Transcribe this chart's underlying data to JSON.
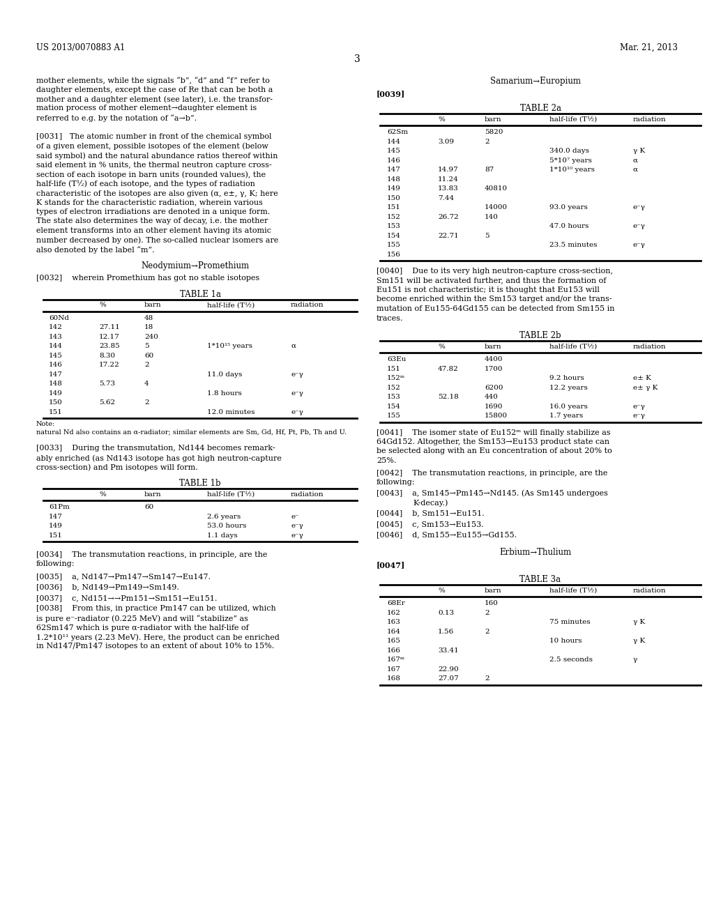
{
  "page_header_left": "US 2013/0070883 A1",
  "page_header_right": "Mar. 21, 2013",
  "page_number": "3",
  "background_color": "#ffffff",
  "left_col_texts": [
    "mother elements, while the signals “b”, “d” and “f” refer to",
    "daughter elements, except the case of Re that can be both a",
    "mother and a daughter element (see later), i.e. the transfor-",
    "mation process of mother element→daughter element is",
    "referred to e.g. by the notation of “a→b”.",
    "",
    "[0031]   The atomic number in front of the chemical symbol",
    "of a given element, possible isotopes of the element (below",
    "said symbol) and the natural abundance ratios thereof within",
    "said element in % units, the thermal neutron capture cross-",
    "section of each isotope in barn units (rounded values), the",
    "half-life (T½) of each isotope, and the types of radiation",
    "characteristic of the isotopes are also given (α, e±, γ, K; here",
    "K stands for the characteristic radiation, wherein various",
    "types of electron irradiations are denoted in a unique form.",
    "The state also determines the way of decay, i.e. the mother",
    "element transforms into an other element having its atomic",
    "number decreased by one). The so-called nuclear isomers are",
    "also denoted by the label “m”."
  ],
  "neodymium_header": "Neodymium→Promethium",
  "para0032": "[0032]    wherein Promethium has got no stable isotopes",
  "table1a_title": "TABLE 1a",
  "table1a_cols": [
    "%",
    "barn",
    "half-life (T½)",
    "radiation"
  ],
  "table1a_rows": [
    [
      "60Nd",
      "",
      "48",
      "",
      ""
    ],
    [
      "142",
      "27.11",
      "18",
      "",
      ""
    ],
    [
      "143",
      "12.17",
      "240",
      "",
      ""
    ],
    [
      "144",
      "23.85",
      "5",
      "1*10¹⁵ years",
      "α"
    ],
    [
      "145",
      "8.30",
      "60",
      "",
      ""
    ],
    [
      "146",
      "17.22",
      "2",
      "",
      ""
    ],
    [
      "147",
      "",
      "",
      "11.0 days",
      "e⁻γ"
    ],
    [
      "148",
      "5.73",
      "4",
      "",
      ""
    ],
    [
      "149",
      "",
      "",
      "1.8 hours",
      "e⁻γ"
    ],
    [
      "150",
      "5.62",
      "2",
      "",
      ""
    ],
    [
      "151",
      "",
      "",
      "12.0 minutes",
      "e⁻γ"
    ]
  ],
  "table1a_note": "Note:",
  "table1a_note2": "natural Nd also contains an α-radiator; similar elements are Sm, Gd, Hf, Pt, Pb, Th and U.",
  "para0033_lines": [
    "[0033]    During the transmutation, Nd144 becomes remark-",
    "ably enriched (as Nd143 isotope has got high neutron-capture",
    "cross-section) and Pm isotopes will form."
  ],
  "table1b_title": "TABLE 1b",
  "table1b_cols": [
    "%",
    "barn",
    "half-life (T½)",
    "radiation"
  ],
  "table1b_rows": [
    [
      "61Pm",
      "",
      "60",
      "",
      ""
    ],
    [
      "147",
      "",
      "",
      "2.6 years",
      "e⁻"
    ],
    [
      "149",
      "",
      "",
      "53.0 hours",
      "e⁻γ"
    ],
    [
      "151",
      "",
      "",
      "1.1 days",
      "e⁻γ"
    ]
  ],
  "para0034_lines": [
    "[0034]    The transmutation reactions, in principle, are the",
    "following:"
  ],
  "para0035": "[0035]    a, Nd147→Pm147→Sm147→Eu147.",
  "para0036": "[0036]    b, Nd149→Pm149→Sm149.",
  "para0037": "[0037]    c, Nd151→→Pm151→Sm151→Eu151.",
  "para0038_lines": [
    "[0038]    From this, in practice Pm147 can be utilized, which",
    "is pure e⁻-radiator (0.225 MeV) and will “stabilize” as",
    "62Sm147 which is pure α-radiator with the half-life of",
    "1.2*10¹¹ years (2.23 MeV). Here, the product can be enriched",
    "in Nd147/Pm147 isotopes to an extent of about 10% to 15%."
  ],
  "samarium_header": "Samarium→Europium",
  "para0039": "[0039]",
  "table2a_title": "TABLE 2a",
  "table2a_cols": [
    "%",
    "barn",
    "half-life (T½)",
    "radiation"
  ],
  "table2a_rows": [
    [
      "62Sm",
      "",
      "5820",
      "",
      ""
    ],
    [
      "144",
      "3.09",
      "2",
      "",
      ""
    ],
    [
      "145",
      "",
      "",
      "340.0 days",
      "γ K"
    ],
    [
      "146",
      "",
      "",
      "5*10⁷ years",
      "α"
    ],
    [
      "147",
      "14.97",
      "87",
      "1*10¹⁰ years",
      "α"
    ],
    [
      "148",
      "11.24",
      "",
      "",
      ""
    ],
    [
      "149",
      "13.83",
      "40810",
      "",
      ""
    ],
    [
      "150",
      "7.44",
      "",
      "",
      ""
    ],
    [
      "151",
      "",
      "14000",
      "93.0 years",
      "e⁻γ"
    ],
    [
      "152",
      "26.72",
      "140",
      "",
      ""
    ],
    [
      "153",
      "",
      "",
      "47.0 hours",
      "e⁻γ"
    ],
    [
      "154",
      "22.71",
      "5",
      "",
      ""
    ],
    [
      "155",
      "",
      "",
      "23.5 minutes",
      "e⁻γ"
    ],
    [
      "156",
      "",
      "",
      "",
      ""
    ]
  ],
  "para0040_lines": [
    "[0040]    Due to its very high neutron-capture cross-section,",
    "Sm151 will be activated further, and thus the formation of",
    "Eu151 is not characteristic; it is thought that Eu153 will",
    "become enriched within the Sm153 target and/or the trans-",
    "mutation of Eu155-64Gd155 can be detected from Sm155 in",
    "traces."
  ],
  "table2b_title": "TABLE 2b",
  "table2b_cols": [
    "%",
    "barn",
    "half-life (T½)",
    "radiation"
  ],
  "table2b_rows": [
    [
      "63Eu",
      "",
      "4400",
      "",
      ""
    ],
    [
      "151",
      "47.82",
      "1700",
      "",
      ""
    ],
    [
      "152ᵐ",
      "",
      "",
      "9.2 hours",
      "e± K"
    ],
    [
      "152",
      "",
      "6200",
      "12.2 years",
      "e± γ K"
    ],
    [
      "153",
      "52.18",
      "440",
      "",
      ""
    ],
    [
      "154",
      "",
      "1690",
      "16.0 years",
      "e⁻γ"
    ],
    [
      "155",
      "",
      "15800",
      "1.7 years",
      "e⁻γ"
    ]
  ],
  "para0041_lines": [
    "[0041]    The isomer state of Eu152ᵐ will finally stabilize as",
    "64Gd152. Altogether, the Sm153→Eu153 product state can",
    "be selected along with an Eu concentration of about 20% to",
    "25%."
  ],
  "para0042_lines": [
    "[0042]    The transmutation reactions, in principle, are the",
    "following:"
  ],
  "para0043": "[0043]    a, Sm145→Pm145→Nd145. (As Sm145 undergoes",
  "para0043b": "K-decay.)",
  "para0044": "[0044]    b, Sm151→Eu151.",
  "para0045": "[0045]    c, Sm153→Eu153.",
  "para0046": "[0046]    d, Sm155→Eu155→Gd155.",
  "erbium_header": "Erbium→Thulium",
  "para0047": "[0047]",
  "table3a_title": "TABLE 3a",
  "table3a_cols": [
    "%",
    "barn",
    "half-life (T½)",
    "radiation"
  ],
  "table3a_rows": [
    [
      "68Er",
      "",
      "160",
      "",
      ""
    ],
    [
      "162",
      "0.13",
      "2",
      "",
      ""
    ],
    [
      "163",
      "",
      "",
      "75 minutes",
      "γ K"
    ],
    [
      "164",
      "1.56",
      "2",
      "",
      ""
    ],
    [
      "165",
      "",
      "",
      "10 hours",
      "γ K"
    ],
    [
      "166",
      "33.41",
      "",
      "",
      ""
    ],
    [
      "167ᵐ",
      "",
      "",
      "2.5 seconds",
      "γ"
    ],
    [
      "167",
      "22.90",
      "",
      "",
      ""
    ],
    [
      "168",
      "27.07",
      "2",
      "",
      ""
    ]
  ]
}
